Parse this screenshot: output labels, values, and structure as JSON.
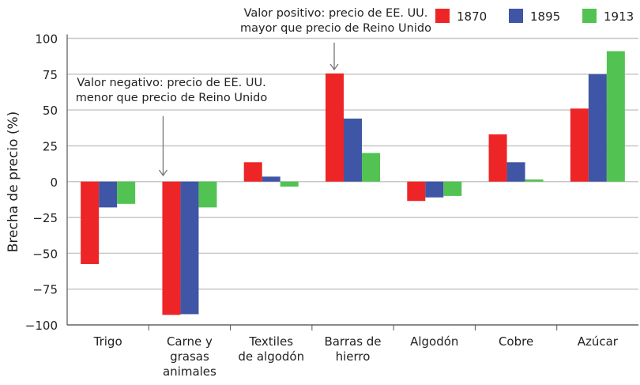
{
  "chart_data": {
    "type": "bar",
    "title": "",
    "xlabel": "",
    "ylabel": "Brecha de precio (%)",
    "ylim": [
      -100,
      100
    ],
    "yticks": [
      100,
      75,
      50,
      25,
      0,
      -25,
      -50,
      -75,
      -100
    ],
    "ytick_labels": [
      "100",
      "75",
      "50",
      "25",
      "0",
      "−25",
      "−50",
      "−75",
      "−100"
    ],
    "grid": true,
    "legend_position": "top-right",
    "categories": [
      [
        "Trigo"
      ],
      [
        "Carne y",
        "grasas",
        "animales"
      ],
      [
        "Textiles",
        "de algodón"
      ],
      [
        "Barras de",
        "hierro"
      ],
      [
        "Algodón"
      ],
      [
        "Cobre"
      ],
      [
        "Azúcar"
      ]
    ],
    "series": [
      {
        "name": "1870",
        "color": "#ee2527",
        "values": [
          -57.5,
          -93,
          13.5,
          75.5,
          -13.5,
          33,
          51
        ]
      },
      {
        "name": "1895",
        "color": "#3f55a5",
        "values": [
          -18,
          -92.5,
          3.5,
          44,
          -11,
          13.5,
          75
        ]
      },
      {
        "name": "1913",
        "color": "#52c352",
        "values": [
          -15.5,
          -18,
          -3.5,
          20,
          -10,
          1.5,
          91
        ]
      }
    ],
    "annotations": [
      {
        "lines": [
          "Valor negativo: precio de EE. UU.",
          "menor que precio de Reino Unido"
        ],
        "category_index": 1
      },
      {
        "lines": [
          "Valor positivo: precio de EE. UU.",
          "mayor que precio de Reino Unido"
        ],
        "category_index": 3
      }
    ]
  }
}
